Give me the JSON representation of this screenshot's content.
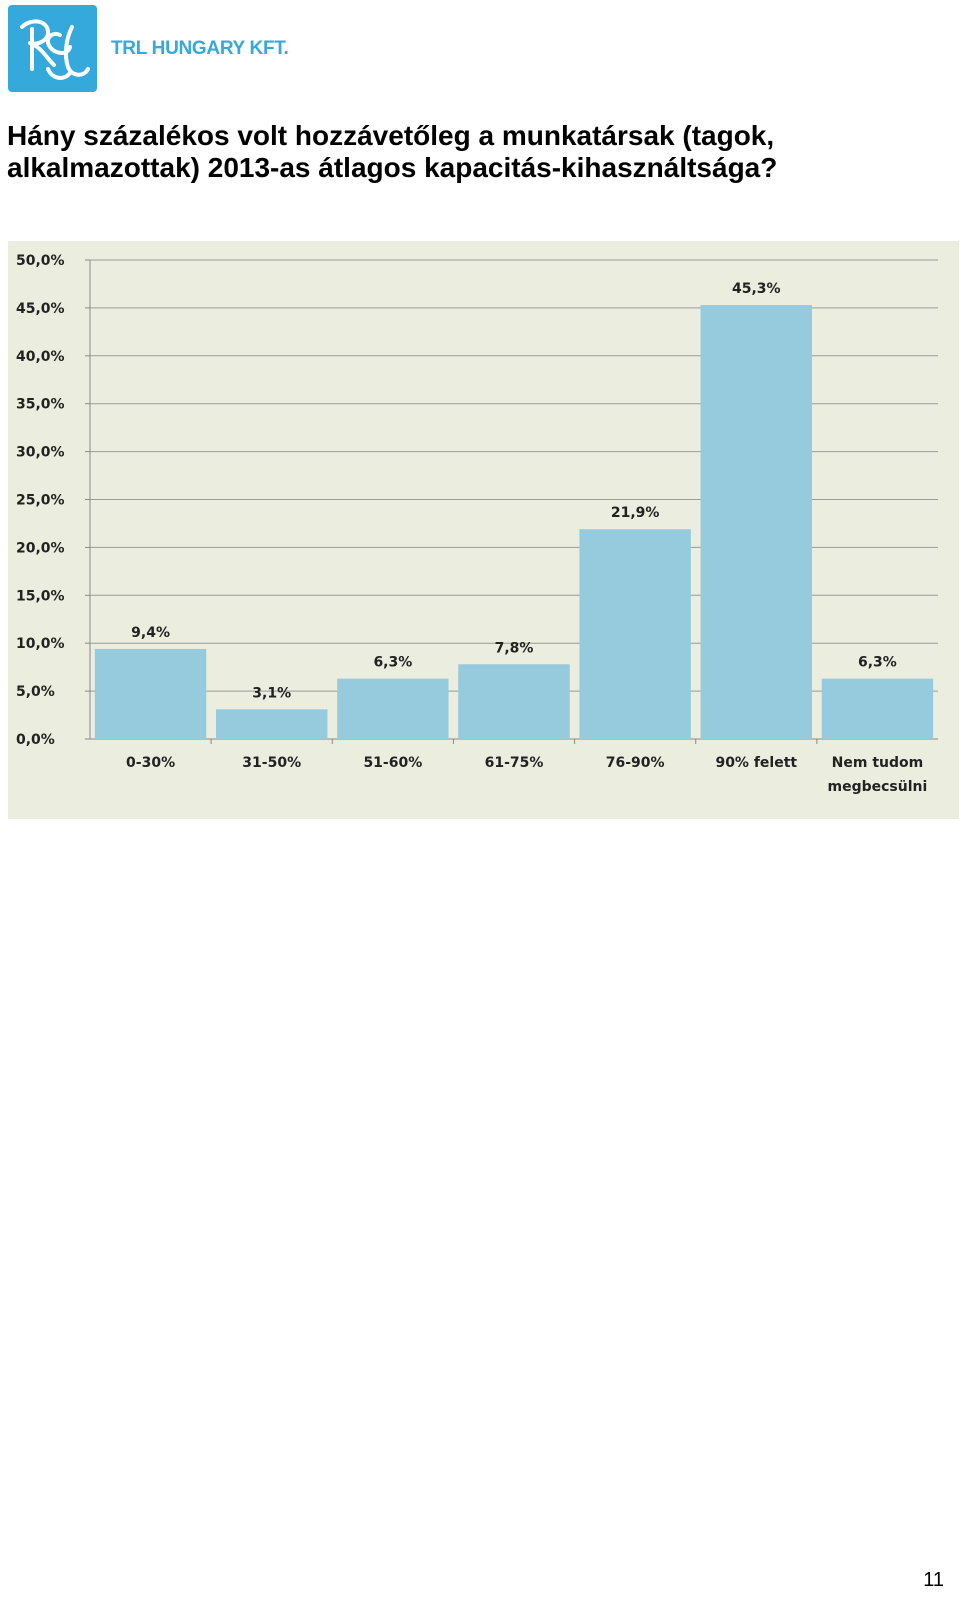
{
  "header": {
    "brand_name": "TRL HUNGARY KFT.",
    "logo_icon": "trl-logo-icon",
    "brand_color": "#35a9dc"
  },
  "title": "Hány százalékos volt hozzávetőleg a munkatársak (tagok, alkalmazottak) 2013-as átlagos kapacitás-kihasználtsága?",
  "chart_data": {
    "type": "bar",
    "categories": [
      "0-30%",
      "31-50%",
      "51-60%",
      "61-75%",
      "76-90%",
      "90% felett",
      [
        "Nem tudom",
        "megbecsülni"
      ]
    ],
    "values": [
      9.4,
      3.1,
      6.3,
      7.8,
      21.9,
      45.3,
      6.3
    ],
    "value_labels": [
      "9,4%",
      "3,1%",
      "6,3%",
      "7,8%",
      "21,9%",
      "45,3%",
      "6,3%"
    ],
    "y_ticks": [
      "0,0%",
      "5,0%",
      "10,0%",
      "15,0%",
      "20,0%",
      "25,0%",
      "30,0%",
      "35,0%",
      "40,0%",
      "45,0%",
      "50,0%"
    ],
    "ylim": [
      0,
      50
    ],
    "grid": true,
    "legend": "none",
    "bar_color": "#96cbde",
    "background_color": "#ebeedf",
    "xlabel": "",
    "ylabel": ""
  },
  "footer": {
    "page_number": "11"
  }
}
